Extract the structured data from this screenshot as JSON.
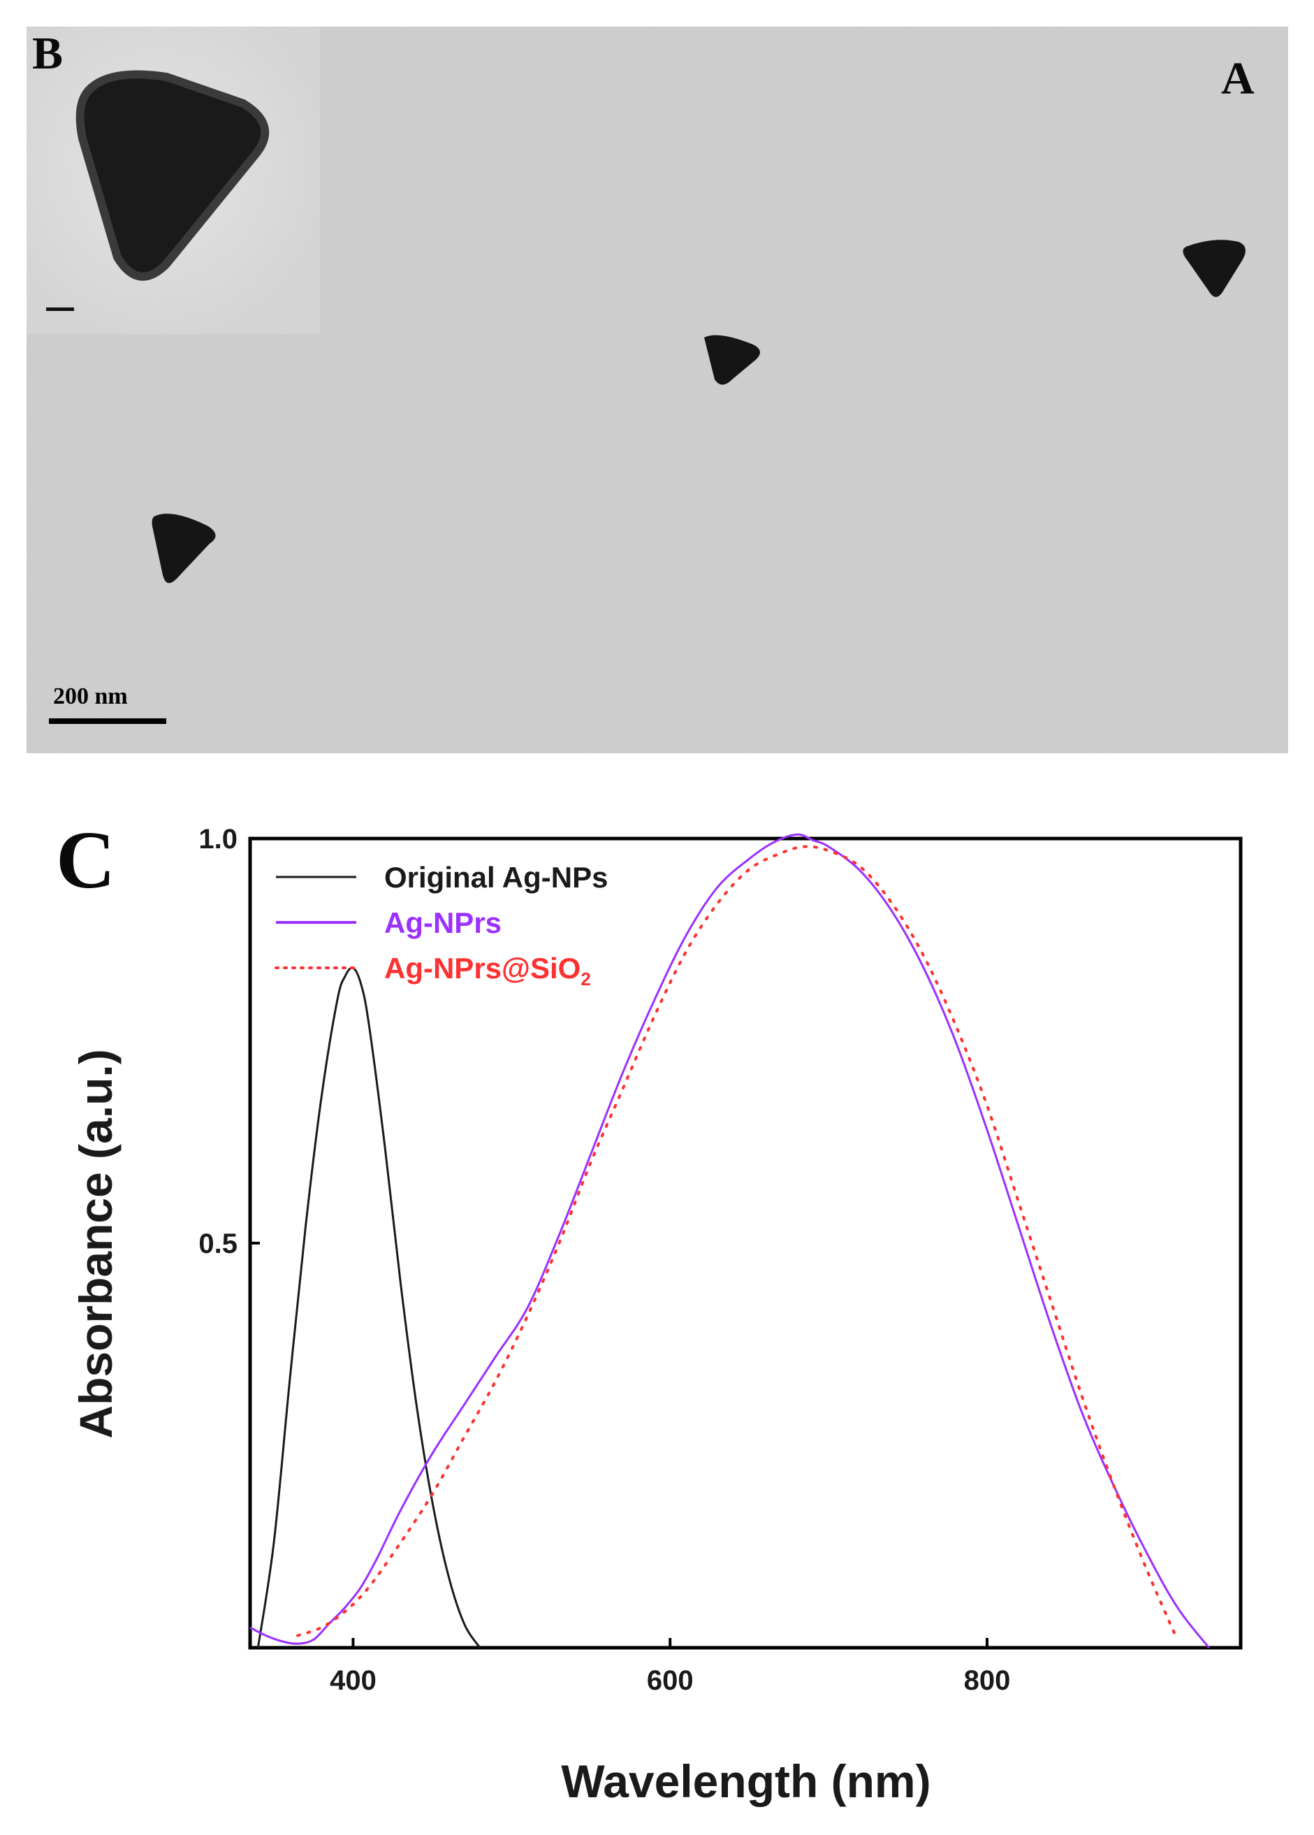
{
  "tem": {
    "panel_a_label": "A",
    "panel_b_label": "B",
    "scale_bar_text": "200 nm"
  },
  "chart_data": {
    "type": "line",
    "panel_label": "C",
    "xlabel": "Wavelength (nm)",
    "ylabel": "Absorbance (a.u.)",
    "xlim": [
      335,
      960
    ],
    "ylim": [
      0,
      1.0
    ],
    "xticks": [
      400,
      600,
      800
    ],
    "yticks": [
      0.5,
      1.0
    ],
    "ytick_labels": [
      "0.5",
      "1.0"
    ],
    "legend_position": "top-left",
    "series": [
      {
        "name": "Original Ag-NPs",
        "color": "#1a1a1a",
        "style": "solid",
        "x": [
          340,
          350,
          360,
          370,
          380,
          390,
          395,
          400,
          405,
          410,
          420,
          430,
          440,
          450,
          460,
          470,
          480
        ],
        "y": [
          0.0,
          0.13,
          0.33,
          0.52,
          0.68,
          0.8,
          0.83,
          0.84,
          0.82,
          0.77,
          0.62,
          0.45,
          0.3,
          0.18,
          0.09,
          0.03,
          0.0
        ]
      },
      {
        "name": "Ag-NPrs",
        "color": "#9b30ff",
        "style": "solid",
        "x": [
          335,
          345,
          355,
          365,
          375,
          385,
          395,
          405,
          415,
          430,
          450,
          470,
          490,
          510,
          530,
          550,
          570,
          590,
          610,
          630,
          650,
          665,
          680,
          690,
          700,
          720,
          740,
          760,
          780,
          800,
          820,
          840,
          860,
          880,
          900,
          920,
          940
        ],
        "y": [
          0.025,
          0.015,
          0.008,
          0.005,
          0.01,
          0.03,
          0.05,
          0.075,
          0.11,
          0.17,
          0.24,
          0.3,
          0.36,
          0.42,
          0.51,
          0.61,
          0.71,
          0.8,
          0.88,
          0.94,
          0.975,
          0.995,
          1.005,
          0.998,
          0.99,
          0.96,
          0.91,
          0.84,
          0.75,
          0.64,
          0.52,
          0.4,
          0.29,
          0.2,
          0.12,
          0.05,
          0.0
        ]
      },
      {
        "name": "Ag-NPrs@SiO",
        "name_subscript": "2",
        "color": "#ff3030",
        "style": "dotted",
        "x": [
          365,
          380,
          395,
          410,
          430,
          450,
          470,
          490,
          510,
          530,
          550,
          570,
          590,
          610,
          630,
          650,
          670,
          685,
          700,
          720,
          740,
          760,
          780,
          800,
          820,
          840,
          860,
          880,
          900,
          920
        ],
        "y": [
          0.015,
          0.025,
          0.045,
          0.075,
          0.13,
          0.19,
          0.26,
          0.33,
          0.41,
          0.5,
          0.6,
          0.69,
          0.78,
          0.86,
          0.92,
          0.962,
          0.982,
          0.99,
          0.985,
          0.965,
          0.92,
          0.855,
          0.77,
          0.67,
          0.55,
          0.43,
          0.31,
          0.2,
          0.1,
          0.01
        ]
      }
    ]
  }
}
